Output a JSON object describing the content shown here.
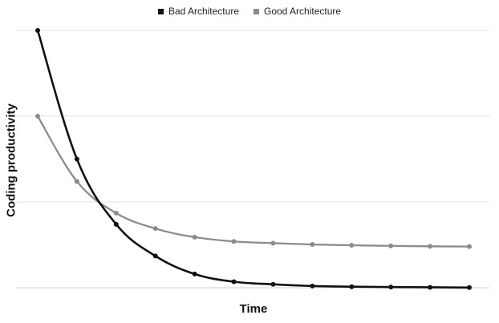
{
  "chart_data": {
    "type": "line",
    "title": "",
    "xlabel": "Time",
    "ylabel": "Coding productivity",
    "x": [
      0,
      1,
      2,
      3,
      4,
      5,
      6,
      7,
      8,
      9,
      10,
      11
    ],
    "ylim": [
      0,
      30
    ],
    "grid": true,
    "legend": "top-center",
    "series": [
      {
        "name": "Bad Architecture",
        "color": "#111111",
        "values": [
          30,
          15,
          7.4,
          3.7,
          1.6,
          0.7,
          0.4,
          0.2,
          0.12,
          0.08,
          0.05,
          0.02
        ]
      },
      {
        "name": "Good Architecture",
        "color": "#8c8c8c",
        "values": [
          20,
          12.4,
          8.7,
          6.9,
          5.9,
          5.4,
          5.2,
          5.05,
          4.95,
          4.88,
          4.83,
          4.8
        ]
      }
    ]
  }
}
